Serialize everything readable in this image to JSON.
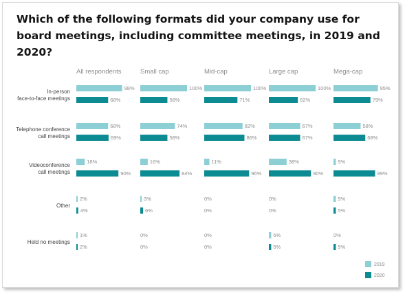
{
  "title": "Which of the following formats did your company use for board meetings, including committee meetings, in 2019 and 2020?",
  "chart_data": {
    "type": "bar",
    "orientation": "horizontal-small-multiples",
    "groups": [
      "All respondents",
      "Small cap",
      "Mid-cap",
      "Large cap",
      "Mega-cap"
    ],
    "categories": [
      [
        "In-person",
        "face-to-face meetings"
      ],
      [
        "Telephone conference",
        "call meetings"
      ],
      [
        "Videoconference",
        "call meetings"
      ],
      [
        "Other"
      ],
      [
        "Held no meetings"
      ]
    ],
    "series": [
      {
        "name": "2019",
        "color": "#8ccfd4",
        "values": [
          [
            98,
            100,
            100,
            100,
            95
          ],
          [
            68,
            74,
            82,
            67,
            58
          ],
          [
            18,
            16,
            11,
            38,
            5
          ],
          [
            2,
            3,
            0,
            0,
            5
          ],
          [
            1,
            0,
            0,
            5,
            0
          ]
        ]
      },
      {
        "name": "2020",
        "color": "#0d8b92",
        "values": [
          [
            68,
            58,
            71,
            62,
            79
          ],
          [
            69,
            58,
            86,
            67,
            68
          ],
          [
            90,
            84,
            96,
            90,
            89
          ],
          [
            4,
            6,
            0,
            0,
            5
          ],
          [
            2,
            0,
            0,
            5,
            5
          ]
        ]
      }
    ],
    "value_suffix": "%",
    "xlim": [
      0,
      100
    ],
    "legend": "bottom-right"
  }
}
